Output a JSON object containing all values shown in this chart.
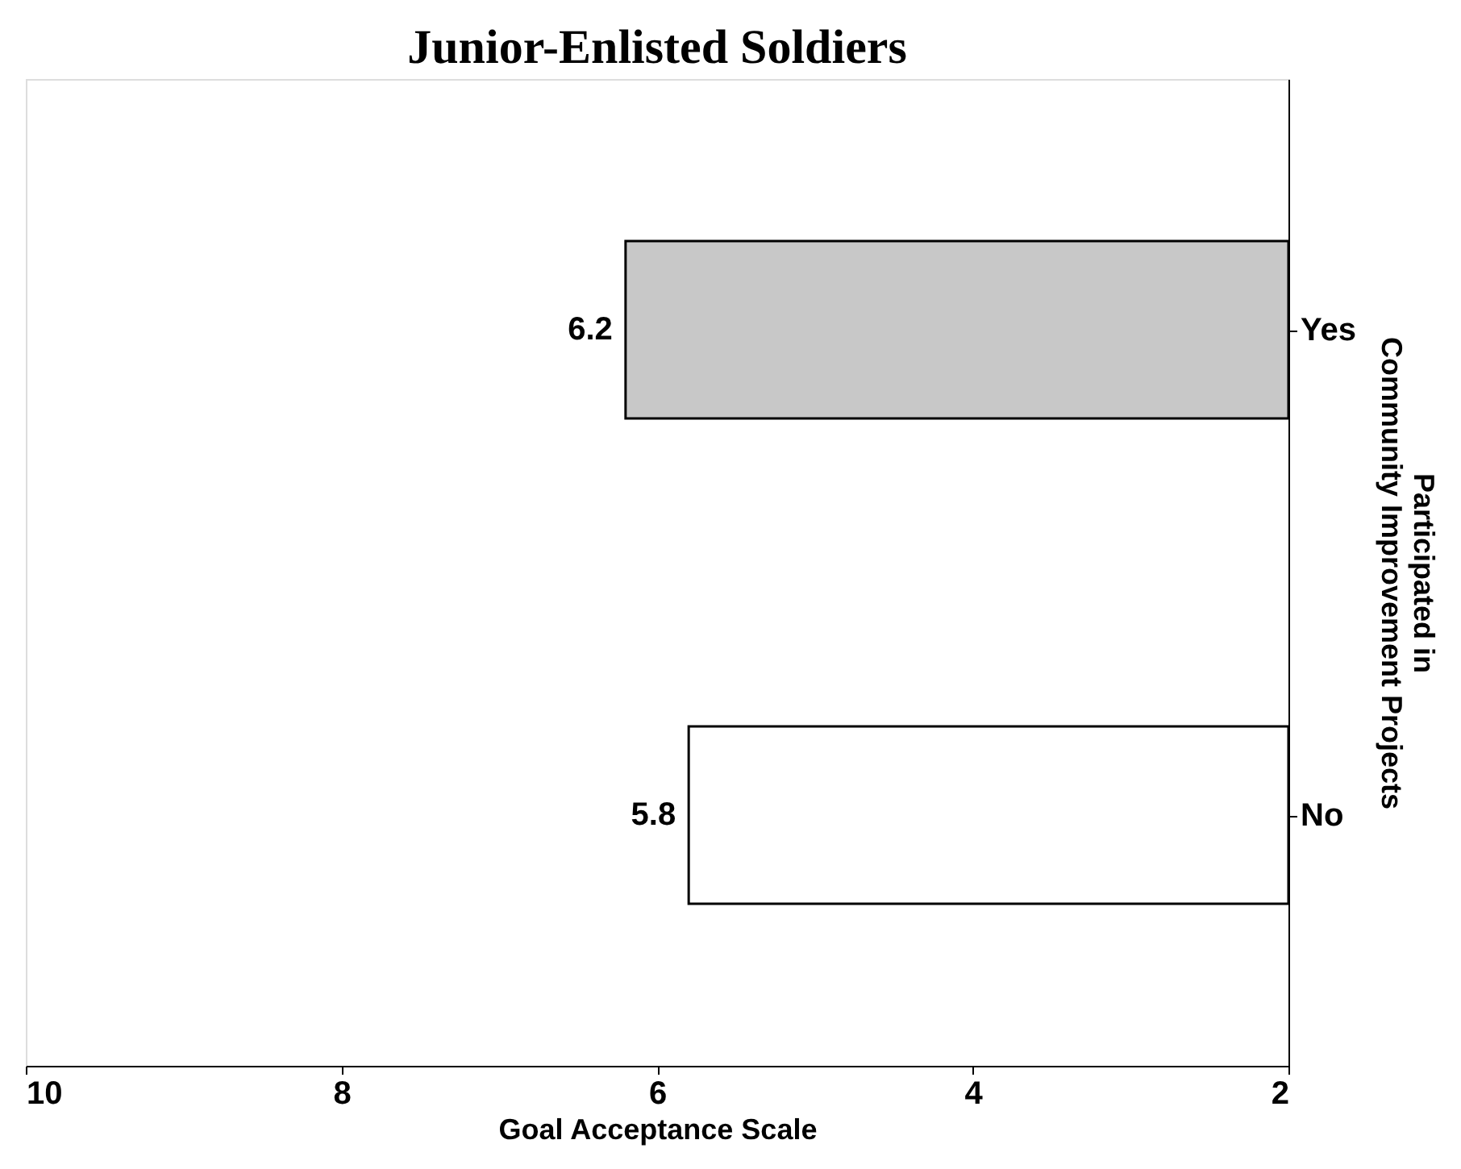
{
  "chart_data": {
    "type": "bar",
    "orientation": "horizontal",
    "title": "Junior-Enlisted Soldiers",
    "categories": [
      "Yes",
      "No"
    ],
    "values": [
      6.2,
      5.8
    ],
    "colors": [
      "#c8c8c8",
      "#ffffff"
    ],
    "xlabel": "Goal Acceptance Scale",
    "ylabel": "Participated in\nCommunity Improvement Projects",
    "xlim": [
      10,
      2
    ],
    "xticks": [
      10,
      8,
      6,
      4,
      2
    ],
    "data_labels": true,
    "grid": false
  }
}
